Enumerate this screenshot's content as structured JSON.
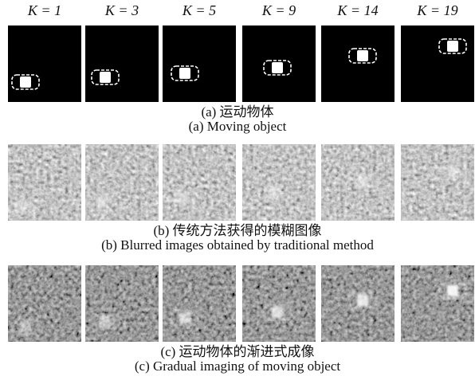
{
  "columns": [
    "K = 1",
    "K = 3",
    "K = 5",
    "K = 9",
    "K = 14",
    "K = 19"
  ],
  "rows": [
    {
      "caption_zh": "(a) 运动物体",
      "caption_en": "(a) Moving object"
    },
    {
      "caption_zh": "(b) 传统方法获得的模糊图像",
      "caption_en": "(b) Blurred images obtained by traditional method"
    },
    {
      "caption_zh": "(c) 运动物体的渐进式成像",
      "caption_en": "(c) Gradual imaging of moving object"
    }
  ]
}
